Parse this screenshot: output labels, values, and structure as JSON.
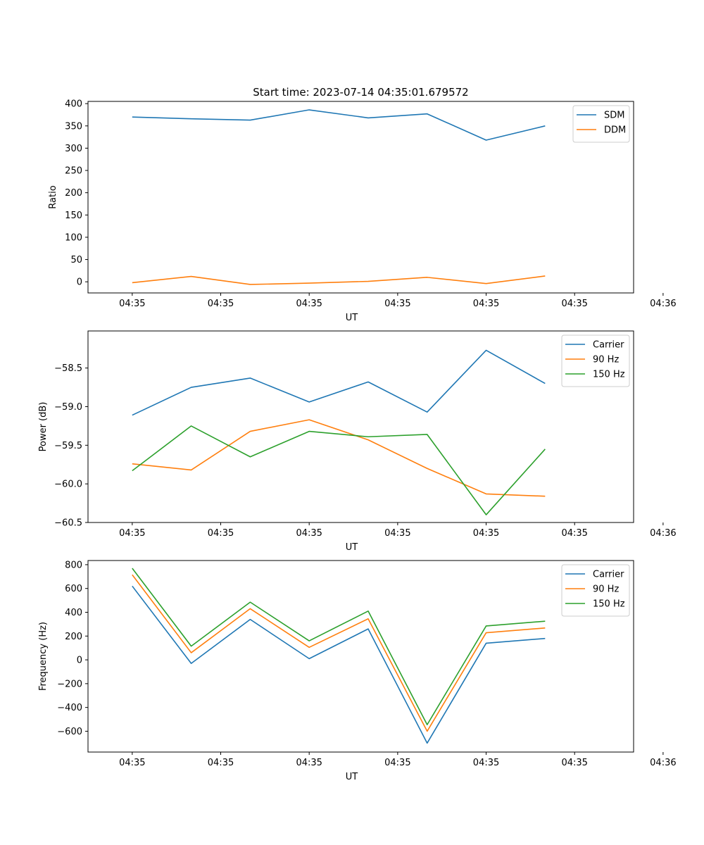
{
  "figure_title": "Start time: 2023-07-14 04:35:01.679572",
  "chart_data": [
    {
      "type": "line",
      "title": "Start time: 2023-07-14 04:35:01.679572",
      "xlabel": "UT",
      "ylabel": "Ratio",
      "xlim": [
        -0.75,
        8.5
      ],
      "ylim": [
        -25,
        405
      ],
      "xticks": [
        0,
        1.5,
        3,
        4.5,
        6,
        7.5,
        9
      ],
      "xtick_labels": [
        "04:35",
        "04:35",
        "04:35",
        "04:35",
        "04:35",
        "04:35",
        "04:36"
      ],
      "yticks": [
        0,
        50,
        100,
        150,
        200,
        250,
        300,
        350,
        400
      ],
      "ytick_labels": [
        "0",
        "50",
        "100",
        "150",
        "200",
        "250",
        "300",
        "350",
        "400"
      ],
      "x": [
        0,
        1,
        2,
        3,
        4,
        5,
        6,
        7
      ],
      "legend_position": "top-right",
      "series": [
        {
          "name": "SDM",
          "color": "#1f77b4",
          "values": [
            370,
            366,
            363,
            386,
            368,
            377,
            318,
            350
          ]
        },
        {
          "name": "DDM",
          "color": "#ff7f0e",
          "values": [
            -2,
            12,
            -6,
            -3,
            1,
            10,
            -4,
            13
          ]
        }
      ]
    },
    {
      "type": "line",
      "title": "",
      "xlabel": "UT",
      "ylabel": "Power (dB)",
      "xlim": [
        -0.75,
        8.5
      ],
      "ylim": [
        -60.5,
        -58.02
      ],
      "xticks": [
        0,
        1.5,
        3,
        4.5,
        6,
        7.5,
        9
      ],
      "xtick_labels": [
        "04:35",
        "04:35",
        "04:35",
        "04:35",
        "04:35",
        "04:35",
        "04:36"
      ],
      "yticks": [
        -60.5,
        -60.0,
        -59.5,
        -59.0,
        -58.5
      ],
      "ytick_labels": [
        "−60.5",
        "−60.0",
        "−59.5",
        "−59.0",
        "−58.5"
      ],
      "x": [
        0,
        1,
        2,
        3,
        4,
        5,
        6,
        7
      ],
      "legend_position": "top-right",
      "series": [
        {
          "name": "Carrier",
          "color": "#1f77b4",
          "values": [
            -59.11,
            -58.75,
            -58.63,
            -58.94,
            -58.68,
            -59.07,
            -58.27,
            -58.7
          ]
        },
        {
          "name": "90 Hz",
          "color": "#ff7f0e",
          "values": [
            -59.74,
            -59.82,
            -59.32,
            -59.17,
            -59.43,
            -59.8,
            -60.13,
            -60.16
          ]
        },
        {
          "name": "150 Hz",
          "color": "#2ca02c",
          "values": [
            -59.83,
            -59.25,
            -59.65,
            -59.32,
            -59.39,
            -59.36,
            -60.4,
            -59.55
          ]
        }
      ]
    },
    {
      "type": "line",
      "title": "",
      "xlabel": "UT",
      "ylabel": "Frequency (Hz)",
      "xlim": [
        -0.75,
        8.5
      ],
      "ylim": [
        -775,
        835
      ],
      "xticks": [
        0,
        1.5,
        3,
        4.5,
        6,
        7.5,
        9
      ],
      "xtick_labels": [
        "04:35",
        "04:35",
        "04:35",
        "04:35",
        "04:35",
        "04:35",
        "04:36"
      ],
      "yticks": [
        -600,
        -400,
        -200,
        0,
        200,
        400,
        600,
        800
      ],
      "ytick_labels": [
        "−600",
        "−400",
        "−200",
        "0",
        "200",
        "400",
        "600",
        "800"
      ],
      "x": [
        0,
        1,
        2,
        3,
        4,
        5,
        6,
        7
      ],
      "legend_position": "top-right",
      "series": [
        {
          "name": "Carrier",
          "color": "#1f77b4",
          "values": [
            620,
            -30,
            340,
            10,
            260,
            -700,
            140,
            180
          ]
        },
        {
          "name": "90 Hz",
          "color": "#ff7f0e",
          "values": [
            715,
            60,
            430,
            105,
            345,
            -600,
            228,
            268
          ]
        },
        {
          "name": "150 Hz",
          "color": "#2ca02c",
          "values": [
            770,
            115,
            485,
            160,
            410,
            -545,
            285,
            325
          ]
        }
      ]
    }
  ]
}
